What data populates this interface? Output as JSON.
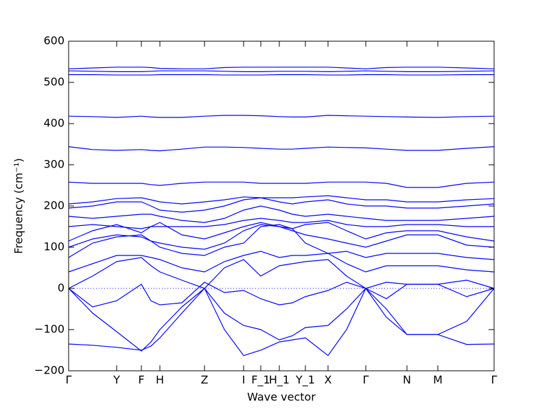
{
  "chart_data": {
    "type": "line",
    "xlabel": "Wave vector",
    "ylabel": "Frequency (cm⁻¹)",
    "color": "#0000ff",
    "xlim": [
      0,
      6.2
    ],
    "ylim": [
      -200,
      600
    ],
    "xticks": [
      {
        "value": 0,
        "label": "Γ"
      },
      {
        "value": 0.7,
        "label": "Y"
      },
      {
        "value": 1.06,
        "label": "F"
      },
      {
        "value": 1.33,
        "label": "H"
      },
      {
        "value": 1.98,
        "label": "Z"
      },
      {
        "value": 2.55,
        "label": "I"
      },
      {
        "value": 2.8,
        "label": "F_1"
      },
      {
        "value": 3.07,
        "label": "H_1"
      },
      {
        "value": 3.45,
        "label": "Y_1"
      },
      {
        "value": 3.78,
        "label": "X"
      },
      {
        "value": 4.33,
        "label": "Γ"
      },
      {
        "value": 4.93,
        "label": "N"
      },
      {
        "value": 5.38,
        "label": "M"
      },
      {
        "value": 6.2,
        "label": "Γ"
      }
    ],
    "yticks": [
      {
        "value": -200,
        "label": "−200"
      },
      {
        "value": -100,
        "label": "−100"
      },
      0,
      100,
      200,
      300,
      400,
      500,
      600
    ],
    "hline": 0,
    "x": [
      0,
      0.35,
      0.7,
      1.06,
      1.2,
      1.33,
      1.65,
      1.98,
      2.27,
      2.55,
      2.8,
      3.07,
      3.26,
      3.45,
      3.78,
      4.05,
      4.33,
      4.63,
      4.93,
      5.38,
      5.8,
      6.2
    ],
    "series": [
      {
        "values": [
          -135,
          -138,
          -143,
          -150,
          -140,
          -120,
          -60,
          0,
          -100,
          -163,
          -150,
          -130,
          -125,
          -120,
          -163,
          -100,
          0,
          -70,
          -112,
          -112,
          -136,
          -135
        ]
      },
      {
        "values": [
          0,
          -60,
          -105,
          -152,
          -130,
          -100,
          -45,
          0,
          -60,
          -90,
          -100,
          -125,
          -115,
          -95,
          -90,
          -50,
          0,
          -50,
          -112,
          -112,
          -80,
          0
        ]
      },
      {
        "values": [
          0,
          -45,
          -30,
          10,
          -30,
          -40,
          -35,
          15,
          -10,
          -5,
          -25,
          -40,
          -35,
          -20,
          -5,
          15,
          0,
          -25,
          10,
          10,
          -20,
          0
        ]
      },
      {
        "values": [
          0,
          30,
          65,
          75,
          55,
          40,
          20,
          0,
          50,
          70,
          30,
          55,
          60,
          65,
          70,
          30,
          0,
          15,
          10,
          10,
          20,
          0
        ]
      },
      {
        "values": [
          40,
          60,
          80,
          80,
          75,
          70,
          50,
          40,
          65,
          80,
          90,
          75,
          80,
          80,
          85,
          60,
          40,
          55,
          55,
          55,
          45,
          40
        ]
      },
      {
        "values": [
          75,
          110,
          125,
          130,
          115,
          100,
          85,
          80,
          100,
          110,
          150,
          155,
          145,
          110,
          85,
          90,
          75,
          85,
          85,
          85,
          75,
          70
        ]
      },
      {
        "values": [
          100,
          120,
          130,
          125,
          115,
          110,
          100,
          95,
          110,
          140,
          155,
          150,
          140,
          130,
          120,
          110,
          100,
          115,
          130,
          130,
          105,
          100
        ]
      },
      {
        "values": [
          115,
          140,
          155,
          135,
          150,
          160,
          130,
          120,
          135,
          150,
          160,
          150,
          145,
          155,
          160,
          140,
          120,
          135,
          140,
          140,
          125,
          115
        ]
      },
      {
        "values": [
          150,
          155,
          150,
          145,
          150,
          150,
          150,
          150,
          155,
          165,
          170,
          165,
          160,
          160,
          165,
          155,
          150,
          150,
          155,
          155,
          150,
          150
        ]
      },
      {
        "values": [
          175,
          170,
          175,
          180,
          180,
          175,
          165,
          160,
          170,
          190,
          200,
          190,
          180,
          175,
          180,
          175,
          170,
          165,
          165,
          165,
          170,
          175
        ]
      },
      {
        "values": [
          195,
          200,
          210,
          210,
          200,
          190,
          185,
          190,
          200,
          215,
          220,
          210,
          205,
          210,
          215,
          205,
          200,
          200,
          195,
          195,
          200,
          205
        ]
      },
      {
        "values": [
          205,
          210,
          218,
          220,
          215,
          210,
          205,
          210,
          215,
          222,
          220,
          220,
          220,
          222,
          225,
          220,
          215,
          215,
          210,
          210,
          215,
          218
        ]
      },
      {
        "values": [
          258,
          255,
          255,
          255,
          252,
          250,
          255,
          258,
          258,
          258,
          255,
          255,
          255,
          255,
          258,
          258,
          258,
          255,
          245,
          245,
          255,
          258
        ]
      },
      {
        "values": [
          344,
          337,
          335,
          337,
          335,
          334,
          338,
          343,
          343,
          342,
          340,
          338,
          338,
          340,
          343,
          342,
          341,
          338,
          335,
          335,
          340,
          344
        ]
      },
      {
        "values": [
          418,
          417,
          415,
          418,
          416,
          415,
          415,
          418,
          420,
          420,
          419,
          417,
          416,
          416,
          420,
          419,
          418,
          417,
          416,
          415,
          417,
          418
        ]
      },
      {
        "values": [
          519,
          519,
          518,
          518,
          518,
          519,
          519,
          519,
          518,
          518,
          518,
          519,
          519,
          519,
          518,
          518,
          519,
          519,
          518,
          518,
          519,
          519
        ]
      },
      {
        "values": [
          528,
          527,
          526,
          526,
          527,
          528,
          528,
          528,
          527,
          526,
          526,
          527,
          527,
          527,
          526,
          527,
          528,
          527,
          526,
          526,
          527,
          528
        ]
      },
      {
        "values": [
          533,
          535,
          537,
          537,
          536,
          534,
          533,
          533,
          536,
          537,
          537,
          537,
          537,
          537,
          537,
          535,
          533,
          536,
          537,
          537,
          535,
          533
        ]
      }
    ]
  }
}
